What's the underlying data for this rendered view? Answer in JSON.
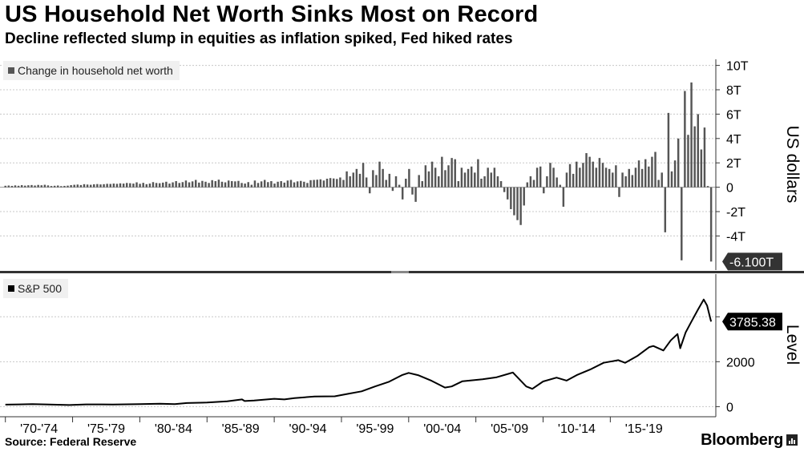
{
  "title": "US Household Net Worth Sinks Most on Record",
  "subtitle": "Decline reflected slump in equities as inflation spiked, Fed hiked rates",
  "source": "Source: Federal Reserve",
  "brand": "Bloomberg",
  "colors": {
    "bar": "#555555",
    "line": "#000000",
    "grid": "#c8c8c8",
    "callout": "#333333",
    "legend_bg": "#f0f0f0"
  },
  "chart_data": [
    {
      "type": "bar",
      "legend": "Change in household net worth",
      "ylabel": "US dollars",
      "ylim": [
        -6.8,
        10.5
      ],
      "yticks": [
        10,
        8,
        6,
        4,
        2,
        0,
        -2,
        -4
      ],
      "ytick_labels": [
        "10T",
        "8T",
        "6T",
        "4T",
        "2T",
        "0",
        "-2T",
        "-4T"
      ],
      "last_value_label": "-6.100T",
      "x_unit": "quarter",
      "x_start": "1970 Q1",
      "x_end": "2022 Q2",
      "values": [
        0.12,
        0.14,
        0.11,
        0.15,
        0.12,
        0.17,
        0.13,
        0.16,
        0.18,
        0.14,
        0.19,
        0.16,
        0.2,
        0.15,
        0.1,
        0.12,
        0.14,
        0.09,
        0.11,
        0.13,
        0.17,
        0.2,
        0.22,
        0.18,
        0.25,
        0.22,
        0.2,
        0.24,
        0.26,
        0.23,
        0.25,
        0.28,
        0.27,
        0.3,
        0.28,
        0.32,
        0.3,
        0.35,
        0.33,
        0.3,
        0.4,
        0.28,
        0.36,
        0.25,
        0.3,
        0.42,
        0.35,
        0.33,
        0.38,
        0.45,
        0.3,
        0.4,
        0.5,
        0.35,
        0.42,
        0.55,
        0.4,
        0.48,
        0.6,
        0.38,
        0.52,
        0.45,
        0.35,
        0.58,
        0.5,
        0.62,
        0.45,
        0.4,
        0.55,
        0.5,
        0.48,
        0.52,
        0.35,
        0.3,
        0.42,
        0.2,
        0.55,
        0.35,
        0.48,
        0.6,
        0.42,
        0.5,
        0.3,
        0.45,
        0.5,
        0.38,
        0.55,
        0.6,
        0.4,
        0.48,
        0.52,
        0.45,
        0.35,
        0.58,
        0.6,
        0.62,
        0.65,
        0.55,
        0.7,
        0.75,
        0.72,
        0.68,
        0.8,
        0.6,
        1.3,
        0.9,
        1.2,
        1.5,
        1.1,
        2.0,
        0.8,
        -0.5,
        1.4,
        1.0,
        2.1,
        1.5,
        0.6,
        1.1,
        -0.3,
        0.9,
        0.2,
        -1.0,
        0.7,
        1.5,
        -0.6,
        -1.2,
        1.0,
        0.5,
        1.8,
        1.3,
        2.1,
        1.6,
        0.9,
        2.5,
        1.4,
        1.8,
        2.4,
        2.3,
        0.5,
        1.6,
        1.2,
        1.5,
        1.7,
        1.2,
        2.3,
        0.7,
        0.9,
        1.6,
        1.2,
        1.6,
        0.9,
        0.5,
        -0.4,
        -1.0,
        -1.8,
        -2.3,
        -2.7,
        -3.1,
        -1.5,
        0.4,
        0.9,
        0.6,
        1.6,
        1.7,
        -0.5,
        0.9,
        2.0,
        1.6,
        0.8,
        0.2,
        -1.6,
        1.2,
        1.9,
        1.1,
        2.1,
        1.6,
        2.0,
        2.8,
        2.5,
        2.1,
        1.6,
        2.4,
        2.0,
        1.6,
        1.5,
        1.2,
        1.8,
        -0.8,
        1.2,
        0.9,
        1.5,
        1.0,
        1.6,
        2.2,
        1.5,
        2.3,
        1.7,
        2.5,
        2.9,
        0.6,
        1.2,
        -3.7,
        6.1,
        1.3,
        2.2,
        4.0,
        -6.0,
        7.9,
        4.3,
        8.6,
        5.0,
        6.0,
        3.1,
        4.9,
        0.1,
        -6.1
      ]
    },
    {
      "type": "line",
      "legend": "S&P 500",
      "ylabel": "Level",
      "ylim": [
        -450,
        5900
      ],
      "yticks": [
        0,
        2000,
        4000
      ],
      "ytick_labels": [
        "0",
        "2000",
        "4000"
      ],
      "last_value_label": "3785.38",
      "x": [
        1970.0,
        1971.0,
        1972.0,
        1973.0,
        1974.75,
        1976.0,
        1978.0,
        1980.0,
        1981.5,
        1982.6,
        1983.5,
        1985.0,
        1986.5,
        1987.6,
        1987.8,
        1988.5,
        1990.0,
        1990.75,
        1991.5,
        1993.0,
        1994.5,
        1995.5,
        1996.5,
        1997.5,
        1998.5,
        1999.5,
        2000.0,
        2000.7,
        2001.7,
        2002.7,
        2003.2,
        2004.0,
        2005.5,
        2006.5,
        2007.75,
        2008.75,
        2009.2,
        2010.0,
        2011.0,
        2011.75,
        2012.5,
        2013.5,
        2014.5,
        2015.6,
        2016.1,
        2017.0,
        2017.9,
        2018.2,
        2018.95,
        2019.5,
        2020.0,
        2020.2,
        2020.6,
        2021.0,
        2021.5,
        2021.95,
        2022.2,
        2022.45,
        2022.5
      ],
      "values": [
        90,
        100,
        115,
        100,
        70,
        100,
        95,
        115,
        130,
        110,
        160,
        180,
        240,
        320,
        250,
        270,
        350,
        320,
        380,
        450,
        460,
        570,
        680,
        900,
        1100,
        1400,
        1500,
        1400,
        1150,
        850,
        900,
        1130,
        1220,
        1300,
        1520,
        900,
        790,
        1120,
        1290,
        1160,
        1400,
        1650,
        1950,
        2070,
        1950,
        2250,
        2650,
        2700,
        2500,
        2950,
        3230,
        2600,
        3300,
        3750,
        4300,
        4770,
        4500,
        3900,
        3785.38
      ]
    }
  ],
  "x_axis": {
    "ticks": [
      "'70-'74",
      "'75-'79",
      "'80-'84",
      "'85-'89",
      "'90-'94",
      "'95-'99",
      "'00-'04",
      "'05-'09",
      "'10-'14",
      "'15-'19"
    ]
  }
}
